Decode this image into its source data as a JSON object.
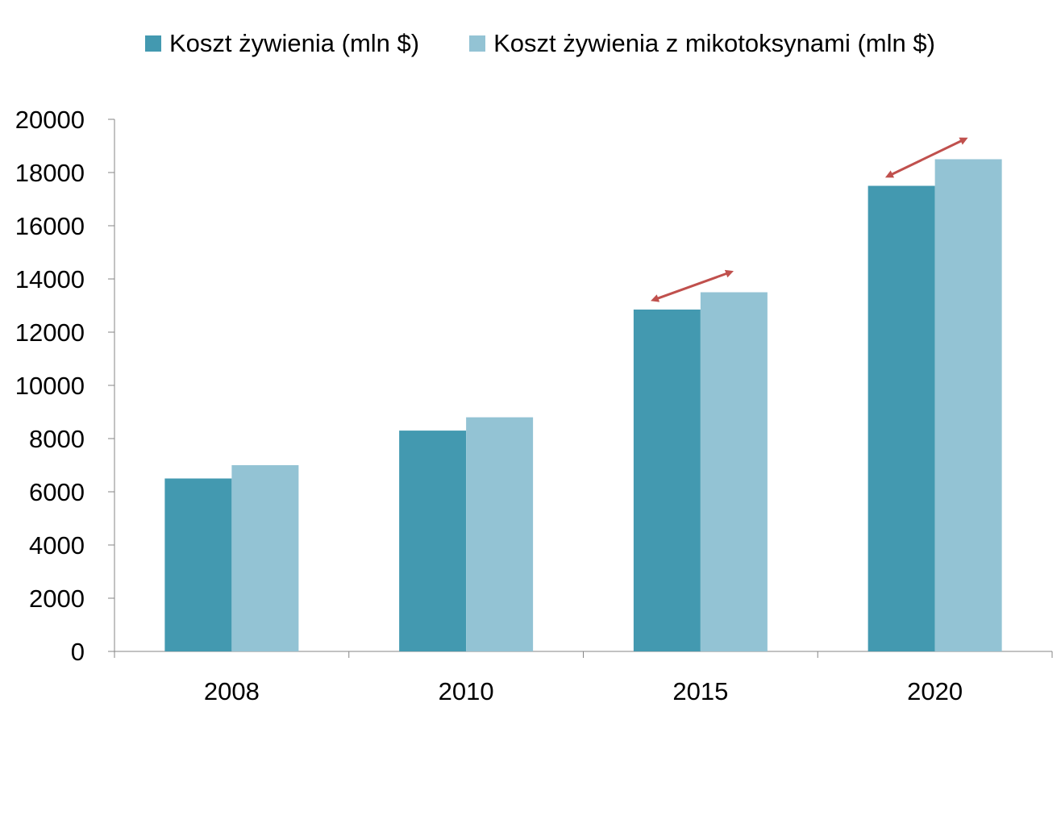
{
  "chart_data": {
    "type": "bar",
    "categories": [
      "2008",
      "2010",
      "2015",
      "2020"
    ],
    "series": [
      {
        "name": "Koszt żywienia (mln $)",
        "color": "#4399b0",
        "values": [
          6500,
          8300,
          12850,
          17500
        ]
      },
      {
        "name": "Koszt żywienia z mikotoksynami (mln $)",
        "color": "#93c3d4",
        "values": [
          7000,
          8800,
          13500,
          18500
        ]
      }
    ],
    "ylim": [
      0,
      20000
    ],
    "yticks": [
      "0",
      "2000",
      "4000",
      "6000",
      "8000",
      "10000",
      "12000",
      "14000",
      "16000",
      "18000",
      "20000"
    ],
    "title": "",
    "xlabel": "",
    "ylabel": "",
    "legend_position": "top",
    "grid": false,
    "annotations": {
      "arrow_color": "#c0504d",
      "double_arrows_at": [
        "2015",
        "2020"
      ]
    }
  }
}
